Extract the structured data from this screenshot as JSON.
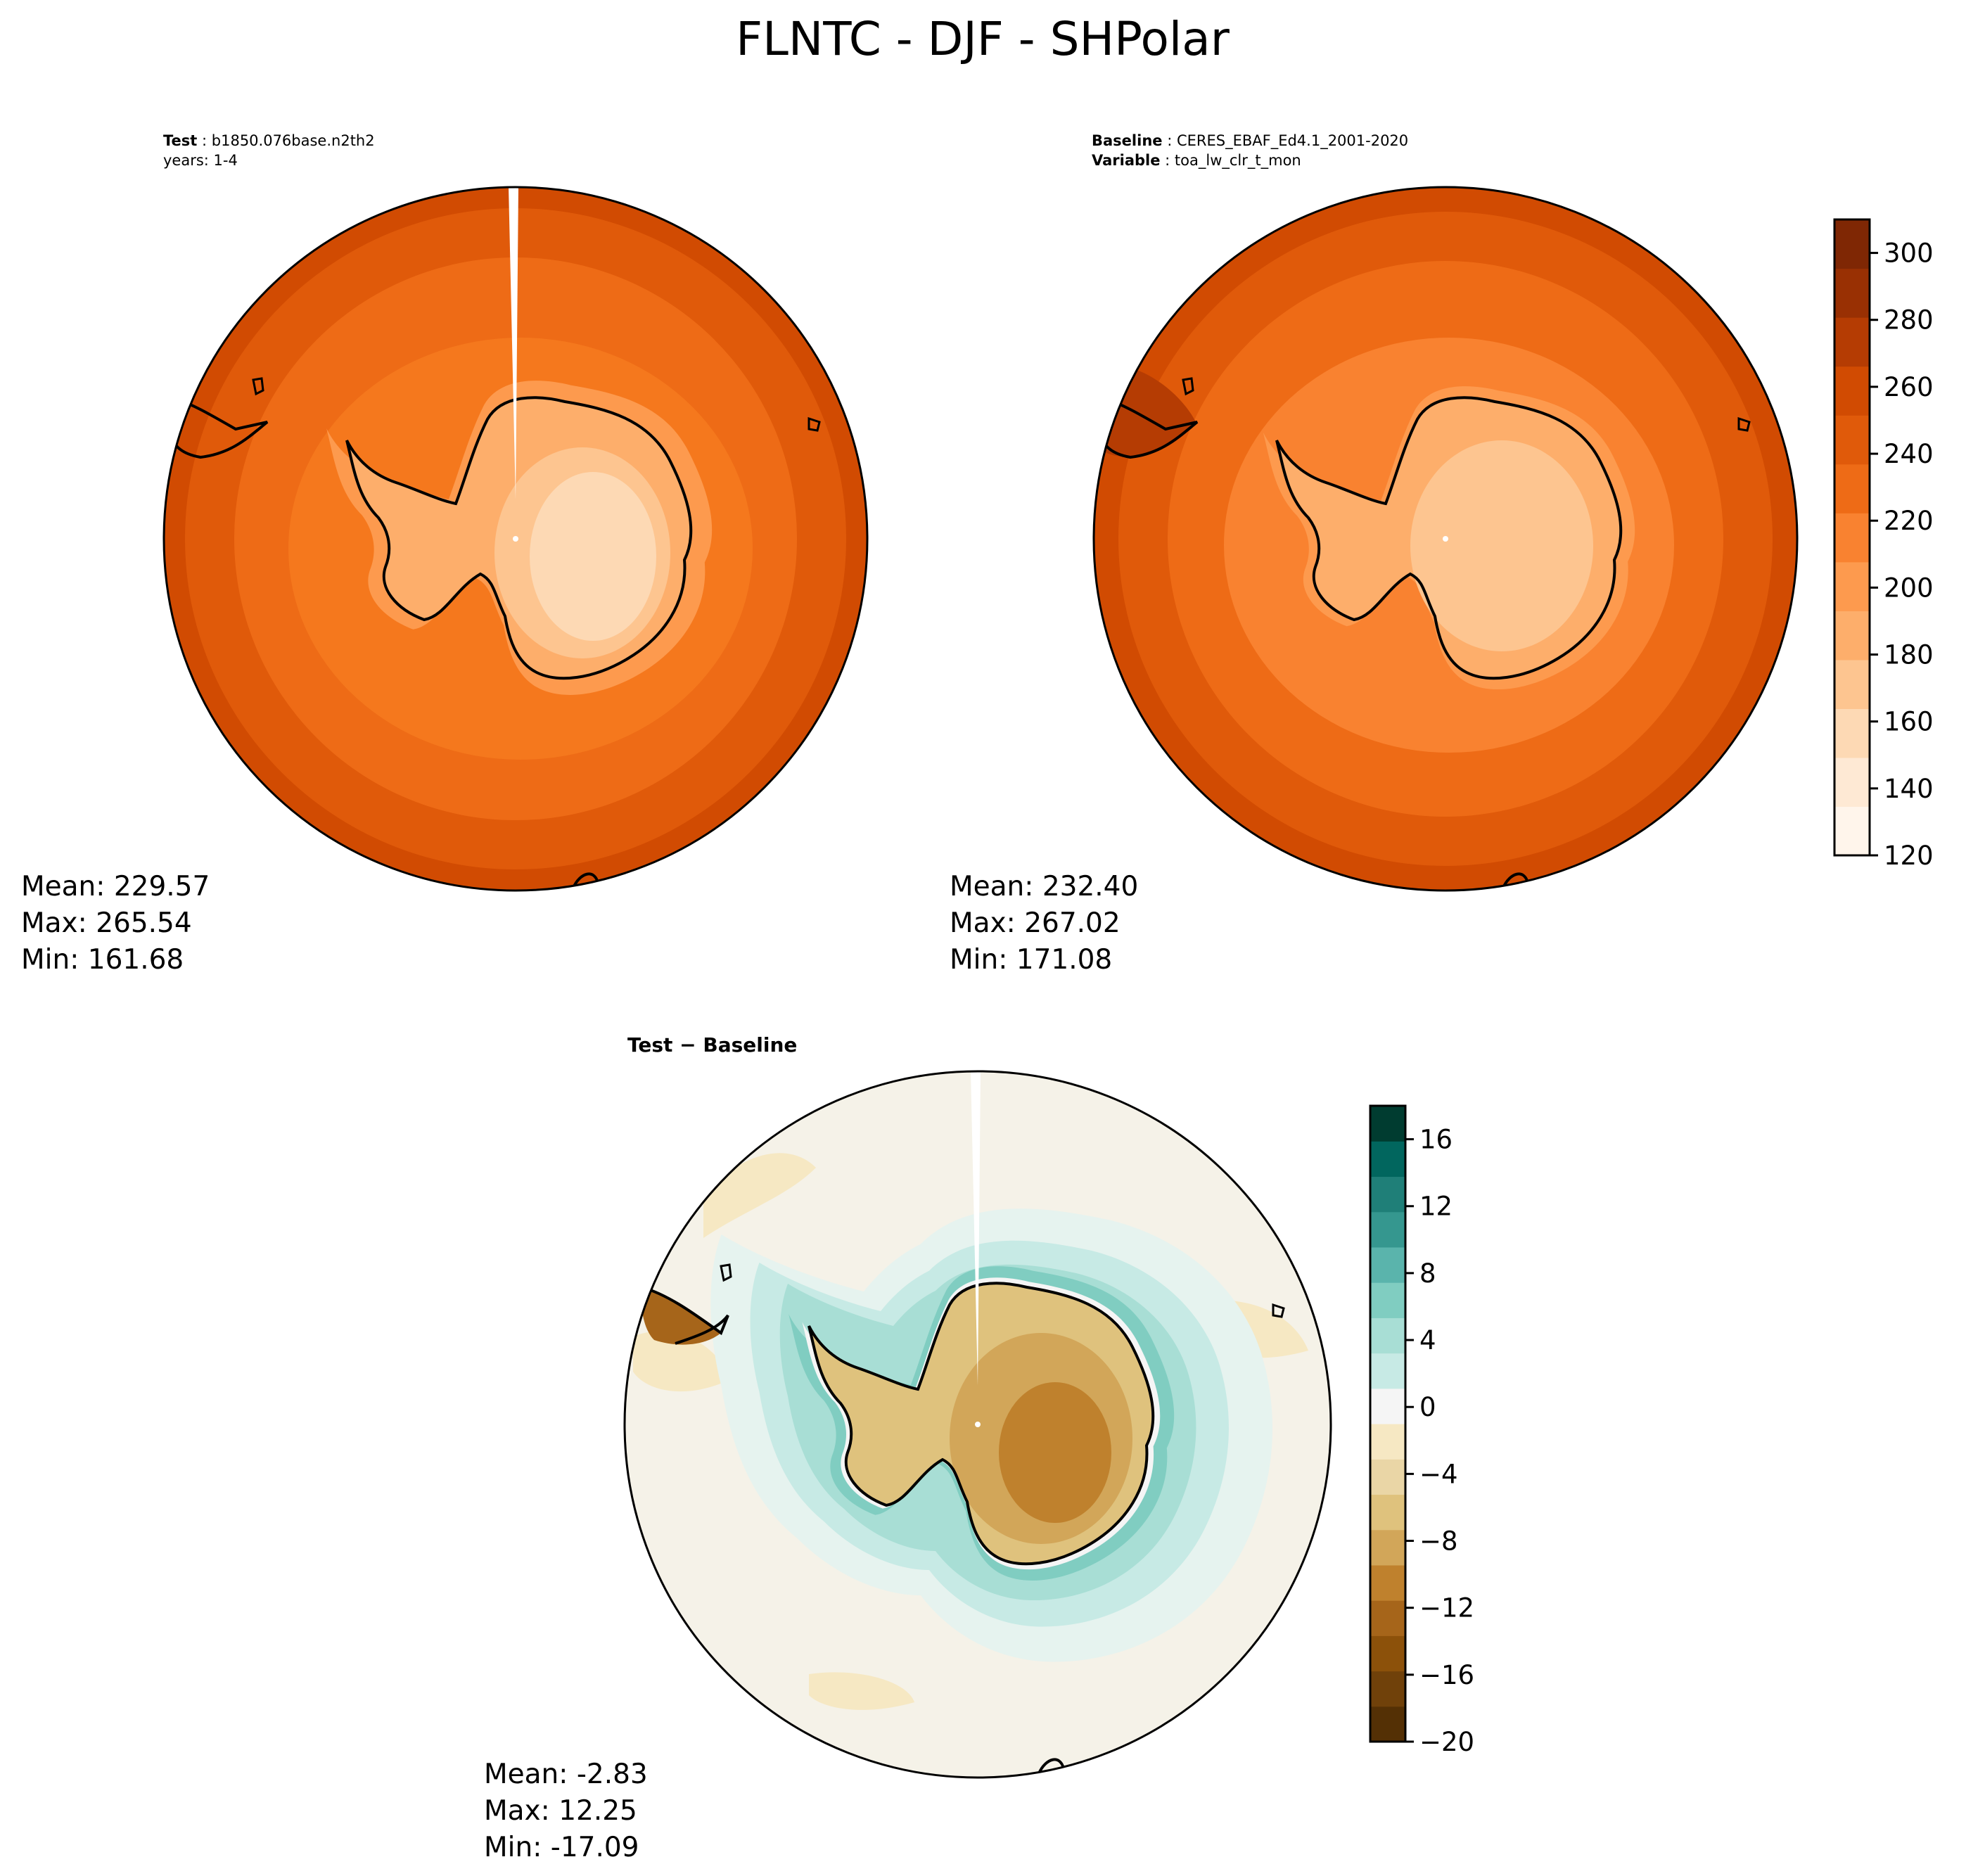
{
  "title": "FLNTC - DJF - SHPolar",
  "panels": {
    "test": {
      "label_key": "Test",
      "label_value": "b1850.076base.n2th2",
      "sub_line": "years: 1-4",
      "stats": {
        "mean": "229.57",
        "max": "265.54",
        "min": "161.68"
      }
    },
    "baseline": {
      "label_key": "Baseline",
      "label_value": "CERES_EBAF_Ed4.1_2001-2020",
      "sub_key": "Variable",
      "sub_value": "toa_lw_clr_t_mon",
      "stats": {
        "mean": "232.40",
        "max": "267.02",
        "min": "171.08"
      }
    },
    "diff": {
      "label": "Test − Baseline",
      "stats": {
        "mean": "-2.83",
        "max": "12.25",
        "min": "-17.09"
      }
    }
  },
  "stat_labels": {
    "mean": "Mean:",
    "max": "Max:",
    "min": "Min:"
  },
  "chart_data": [
    {
      "type": "heatmap",
      "name": "test",
      "projection": "south-polar-stereographic",
      "field_zones": [
        {
          "zone": "outer-ocean",
          "value": 255
        },
        {
          "zone": "mid-ocean",
          "value": 245
        },
        {
          "zone": "inner-ocean",
          "value": 232
        },
        {
          "zone": "coast",
          "value": 222
        },
        {
          "zone": "west-antarctica",
          "value": 212
        },
        {
          "zone": "east-antarctica-edge",
          "value": 190
        },
        {
          "zone": "east-antarctica-interior",
          "value": 175
        },
        {
          "zone": "east-antarctica-plateau",
          "value": 165
        }
      ]
    },
    {
      "type": "heatmap",
      "name": "baseline",
      "projection": "south-polar-stereographic",
      "field_zones": [
        {
          "zone": "outer-ocean",
          "value": 258
        },
        {
          "zone": "mid-ocean",
          "value": 248
        },
        {
          "zone": "inner-ocean",
          "value": 235
        },
        {
          "zone": "coast",
          "value": 225
        },
        {
          "zone": "west-antarctica",
          "value": 215
        },
        {
          "zone": "east-antarctica-edge",
          "value": 200
        },
        {
          "zone": "east-antarctica-interior",
          "value": 188
        },
        {
          "zone": "east-antarctica-plateau",
          "value": 178
        }
      ],
      "colorbar": {
        "range": [
          120,
          310
        ],
        "ticks": [
          120,
          140,
          160,
          180,
          200,
          220,
          240,
          260,
          280,
          300
        ],
        "colors": [
          "#fff5eb",
          "#fee9d4",
          "#fdd9b4",
          "#fdc590",
          "#fdae6b",
          "#fd9a4e",
          "#f98230",
          "#ee6b16",
          "#e05a0a",
          "#d14b02",
          "#b53c03",
          "#993003",
          "#7f2704"
        ]
      }
    },
    {
      "type": "heatmap",
      "name": "diff",
      "projection": "south-polar-stereographic",
      "field_zones": [
        {
          "zone": "open-ocean",
          "value": -2
        },
        {
          "zone": "southern-ocean-ring",
          "value": 5
        },
        {
          "zone": "antarctica",
          "value": -10
        },
        {
          "zone": "south-america",
          "value": -12
        }
      ],
      "colorbar": {
        "range": [
          -20,
          18
        ],
        "ticks": [
          -20,
          -16,
          -12,
          -8,
          -4,
          0,
          4,
          8,
          12,
          16
        ],
        "colors": [
          "#543005",
          "#70410a",
          "#8c510a",
          "#a6651a",
          "#bf812d",
          "#d2a659",
          "#dfc27d",
          "#ead6a6",
          "#f6e8c3",
          "#f5f5f5",
          "#c7eae5",
          "#a8ded5",
          "#80cdc1",
          "#5ab4ac",
          "#35978f",
          "#1f7f78",
          "#01665e",
          "#003c30"
        ]
      }
    }
  ]
}
